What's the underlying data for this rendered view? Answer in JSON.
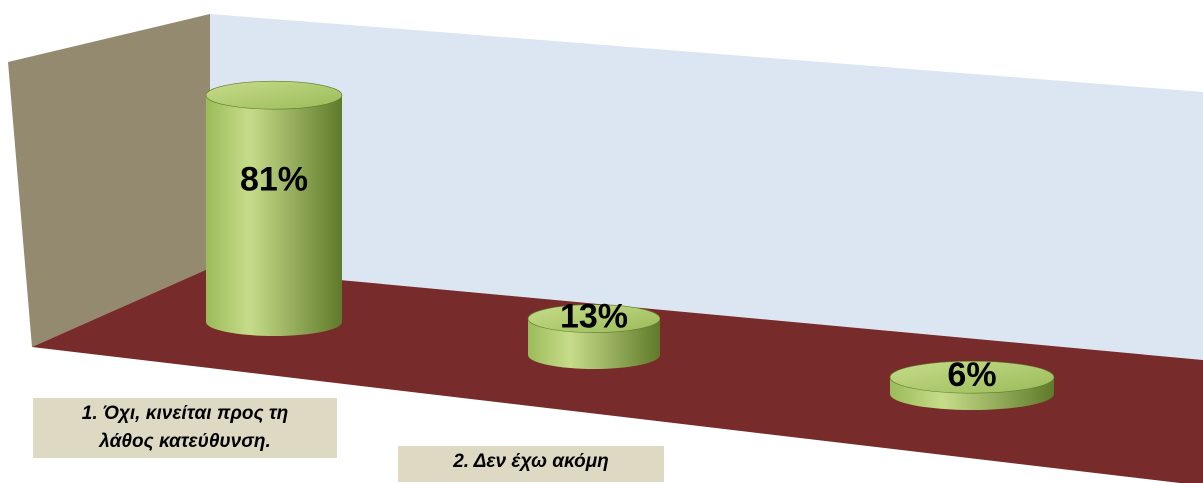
{
  "chart_data": {
    "type": "bar",
    "title": "",
    "categories": [
      [
        "1. Όχι, κινείται προς τη",
        "λάθος κατεύθυνση."
      ],
      [
        "2. Δεν έχω ακόμη"
      ],
      []
    ],
    "values": [
      81,
      13,
      6
    ],
    "data_labels": [
      "81%",
      "13%",
      "6%"
    ],
    "ylim": [
      0,
      100
    ],
    "grid": false,
    "legend": "none",
    "colors": {
      "bar": "#9bbb59",
      "bar_highlight": "#c6dc8a",
      "bar_shadow": "#5f7a2a",
      "bar_top": "#a9c766",
      "floor": "#772b2b",
      "back_wall": "#dce6f2",
      "side_wall": "#948a6f",
      "label_bg": "#ddd9c3"
    }
  }
}
